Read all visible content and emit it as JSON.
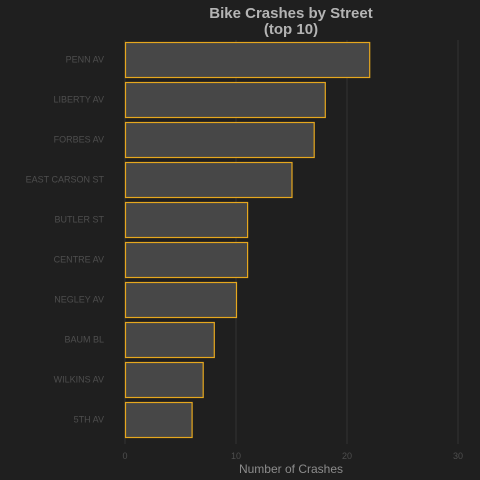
{
  "chart_data": {
    "type": "bar",
    "orientation": "horizontal",
    "title_lines": [
      "Bike Crashes by Street",
      "(top 10)"
    ],
    "xlabel": "Number of Crashes",
    "ylabel": "",
    "categories": [
      "PENN AV",
      "LIBERTY AV",
      "FORBES AV",
      "EAST CARSON ST",
      "BUTLER ST",
      "CENTRE AV",
      "NEGLEY AV",
      "BAUM BL",
      "WILKINS AV",
      "5TH AV"
    ],
    "values": [
      22,
      18,
      17,
      15,
      11,
      11,
      10,
      8,
      7,
      6
    ],
    "xlim": [
      0,
      30
    ],
    "xticks": [
      "0",
      "10",
      "20",
      "30"
    ],
    "grid": "vertical",
    "legend": "none",
    "colors": {
      "background": "#1f1f1f",
      "bar_fill": "#474747",
      "bar_outline": "#e6a71e",
      "grid": "#333333"
    }
  }
}
